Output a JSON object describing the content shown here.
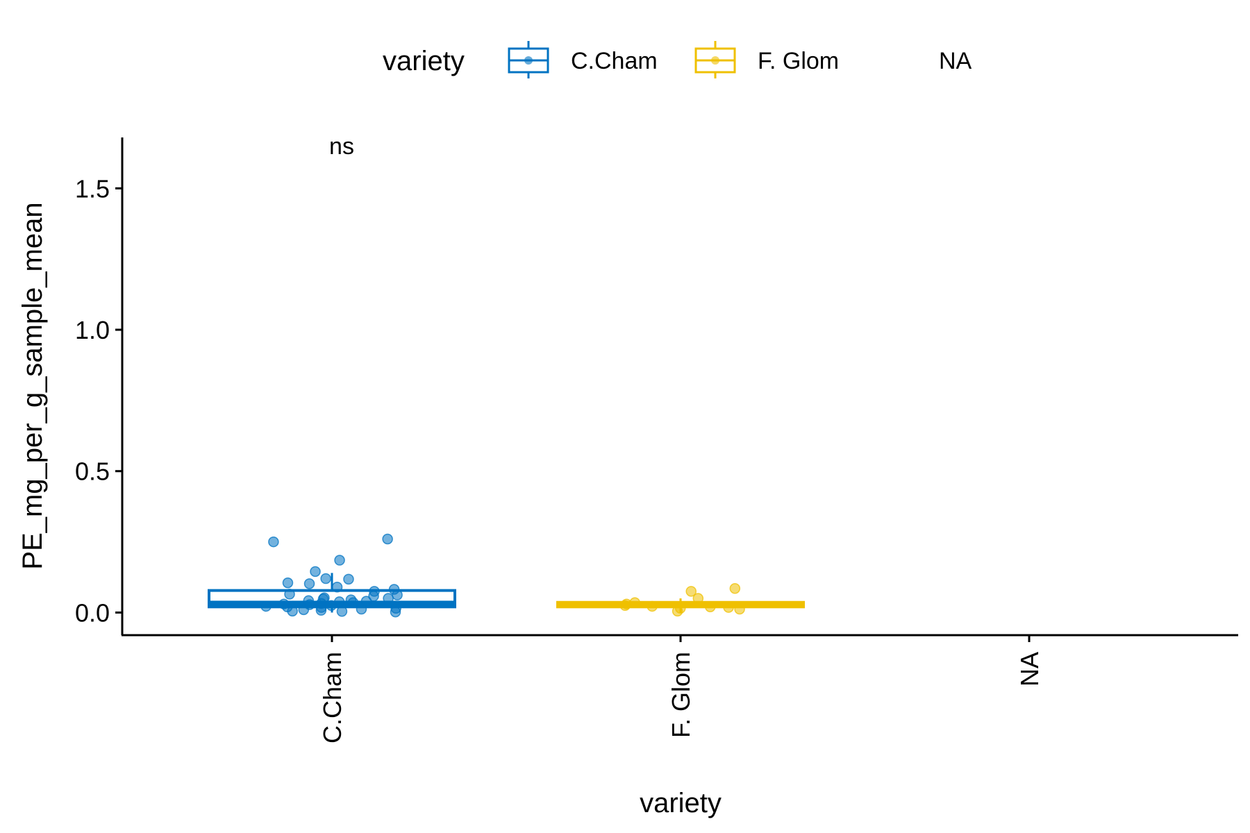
{
  "chart_data": {
    "type": "boxplot",
    "xlabel": "variety",
    "ylabel": "PE_mg_per_g_sample_mean",
    "categories": [
      "C.Cham",
      "F. Glom",
      "NA"
    ],
    "ylim": [
      -0.08,
      1.68
    ],
    "yticks": [
      0.0,
      0.5,
      1.0,
      1.5
    ],
    "ytick_labels": [
      "0.0",
      "0.5",
      "1.0",
      "1.5"
    ],
    "grid": false,
    "legend": {
      "title": "variety",
      "position": "top",
      "entries": [
        {
          "label": "C.Cham",
          "color": "#0073C2"
        },
        {
          "label": "F. Glom",
          "color": "#EFC000"
        },
        {
          "label": "NA",
          "color": null
        }
      ]
    },
    "boxes": [
      {
        "category": "C.Cham",
        "color": "#0073C2",
        "min": 0.0,
        "q1": 0.02,
        "median": 0.032,
        "q3": 0.078,
        "max": 0.14
      },
      {
        "category": "F. Glom",
        "color": "#EFC000",
        "min": 0.0,
        "q1": 0.02,
        "median": 0.028,
        "q3": 0.036,
        "max": 0.05
      }
    ],
    "points": [
      {
        "category": "C.Cham",
        "values": [
          0.26,
          0.25,
          0.185,
          0.145,
          0.12,
          0.118,
          0.105,
          0.102,
          0.09,
          0.082,
          0.075,
          0.065,
          0.062,
          0.058,
          0.052,
          0.05,
          0.048,
          0.045,
          0.042,
          0.04,
          0.038,
          0.035,
          0.032,
          0.03,
          0.028,
          0.025,
          0.022,
          0.02,
          0.018,
          0.015,
          0.012,
          0.01,
          0.008,
          0.005,
          0.004,
          0.002
        ]
      },
      {
        "category": "F. Glom",
        "values": [
          0.085,
          0.075,
          0.05,
          0.035,
          0.03,
          0.025,
          0.022,
          0.02,
          0.018,
          0.015,
          0.012,
          0.005
        ]
      }
    ],
    "annotations": [
      {
        "category": "C.Cham",
        "text": "ns",
        "y": 1.65
      }
    ]
  }
}
